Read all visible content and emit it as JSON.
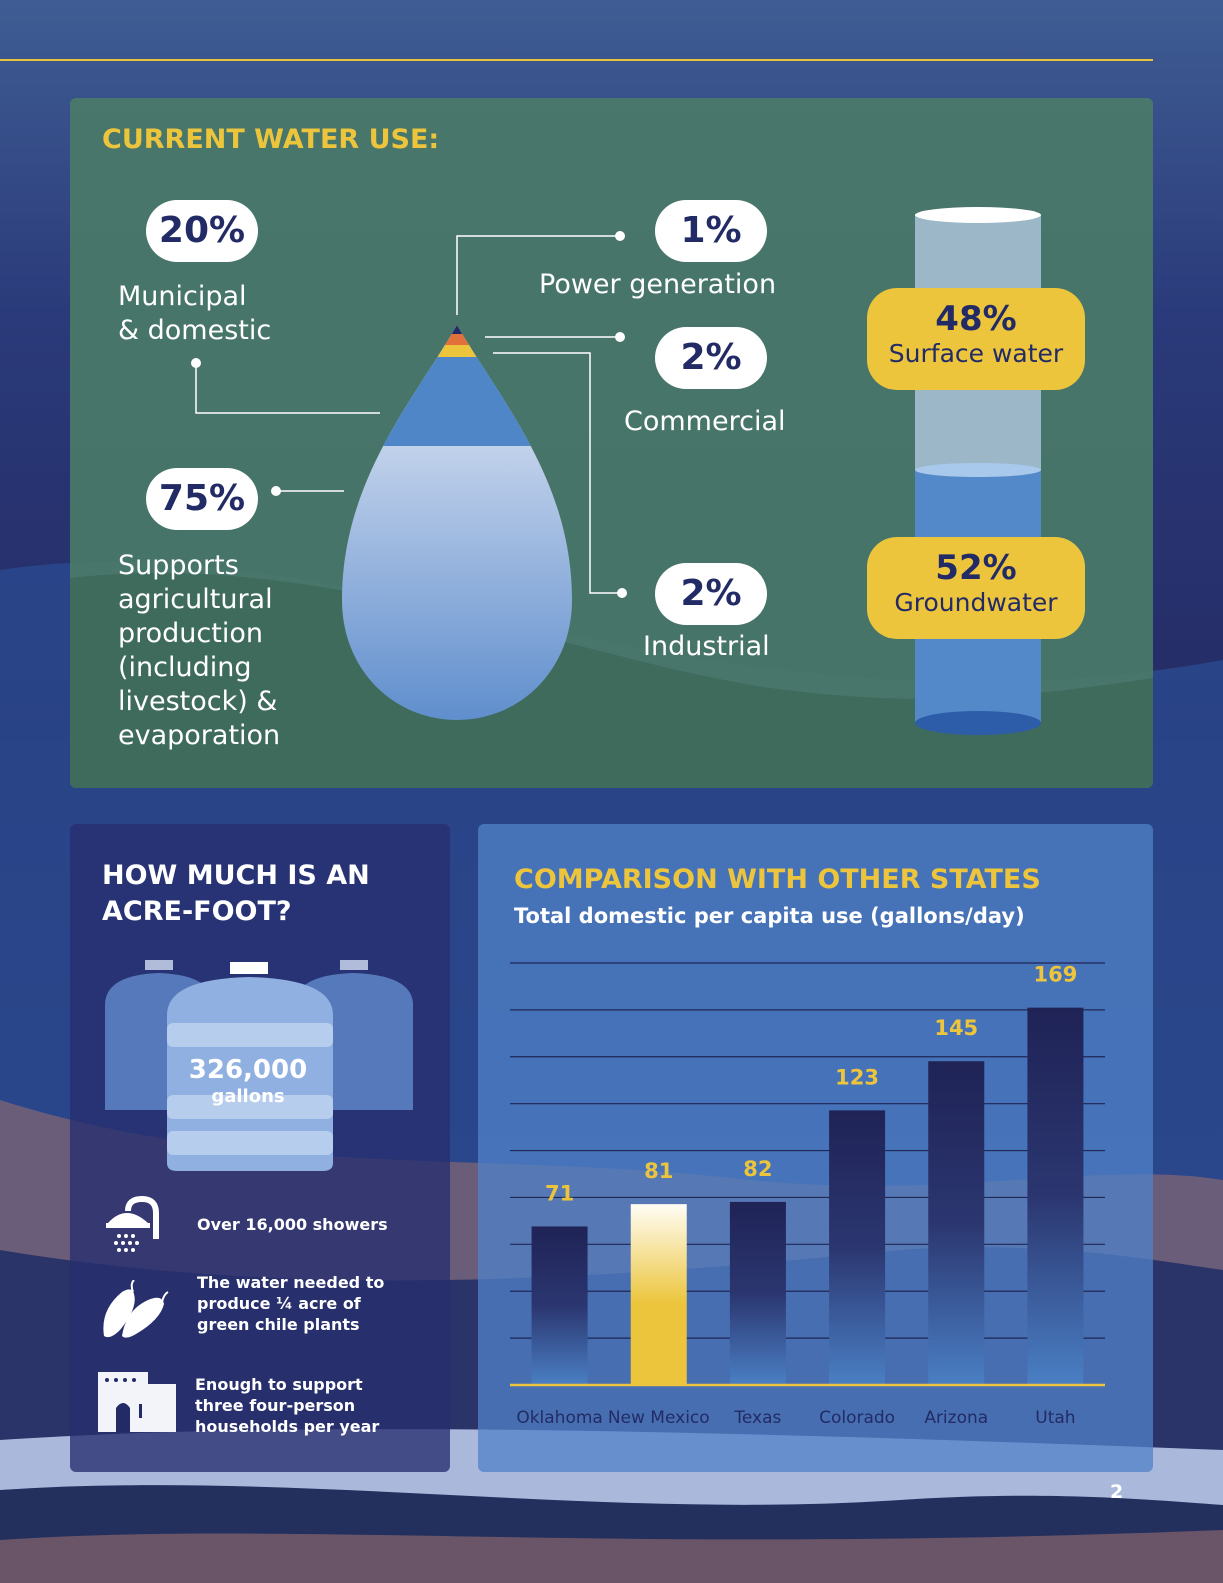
{
  "page_number": "2",
  "water_use": {
    "title": "CURRENT WATER USE:",
    "items": [
      {
        "percent": "20%",
        "label_lines": [
          "Municipal",
          "& domestic"
        ]
      },
      {
        "percent": "75%",
        "label_lines": [
          "Supports",
          "agricultural",
          "production",
          "(including",
          "livestock) &",
          "evaporation"
        ]
      },
      {
        "percent": "1%",
        "label": "Power generation"
      },
      {
        "percent": "2%",
        "label": "Commercial"
      },
      {
        "percent": "2%",
        "label": "Industrial"
      }
    ],
    "sources": [
      {
        "percent": "48%",
        "label": "Surface water"
      },
      {
        "percent": "52%",
        "label": "Groundwater"
      }
    ]
  },
  "acre_foot": {
    "title_lines": [
      "HOW MUCH IS AN",
      "ACRE-FOOT?"
    ],
    "amount": "326,000",
    "unit": "gallons",
    "facts": [
      {
        "icon": "shower-icon",
        "lines": [
          "Over 16,000 showers"
        ]
      },
      {
        "icon": "chile-pepper-icon",
        "lines": [
          "The water needed to",
          "produce ¼ acre of",
          "green chile plants"
        ]
      },
      {
        "icon": "adobe-house-icon",
        "lines": [
          "Enough to support",
          "three four-person",
          "households per year"
        ]
      }
    ]
  },
  "colors": {
    "accent": "#ecc53c",
    "navy": "#232b66",
    "panel_green": "#4a7a68"
  },
  "chart_data": {
    "type": "bar",
    "title": "COMPARISON WITH OTHER STATES",
    "subtitle": "Total domestic per capita use (gallons/day)",
    "categories": [
      "Oklahoma",
      "New Mexico",
      "Texas",
      "Colorado",
      "Arizona",
      "Utah"
    ],
    "values": [
      71,
      81,
      82,
      123,
      145,
      169
    ],
    "highlight": "New Mexico",
    "highlight_color": "#ecc53c",
    "bar_color": "#232b66",
    "ylim": [
      0,
      189
    ],
    "grid": true,
    "legend": "none"
  }
}
